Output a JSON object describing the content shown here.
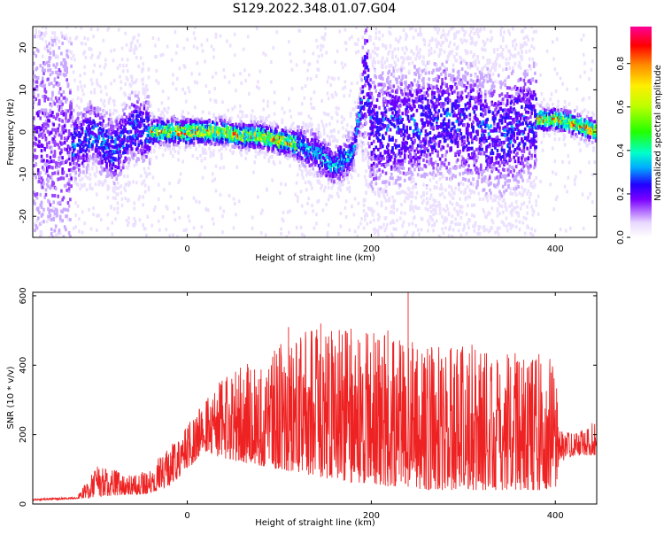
{
  "figure": {
    "title": "S129.2022.348.01.07.G04"
  },
  "chart_data": [
    {
      "type": "heatmap",
      "xlabel": "Height of straight line (km)",
      "ylabel": "Frequency (Hz)",
      "xlim": [
        -168,
        445
      ],
      "ylim": [
        -25,
        25
      ],
      "x_ticks": [
        0,
        200,
        400
      ],
      "y_ticks": [
        -20,
        -10,
        0,
        10,
        20
      ],
      "colorbar": {
        "label": "Normalized spectral amplitude",
        "range": [
          0,
          0.97
        ],
        "ticks": [
          0.0,
          0.2,
          0.4,
          0.6,
          0.8
        ]
      },
      "ridge": {
        "description_free": true,
        "x": [
          -168,
          -120,
          -100,
          -80,
          -60,
          -40,
          -20,
          0,
          20,
          40,
          60,
          80,
          100,
          120,
          140,
          160,
          180,
          195,
          200,
          240,
          280,
          300,
          340,
          380,
          400,
          420,
          445
        ],
        "y": [
          0,
          -3,
          0,
          -5,
          1,
          0,
          0,
          0,
          0,
          0,
          -1,
          -1,
          -2,
          -3,
          -5,
          -8,
          -5,
          14,
          0,
          1,
          3,
          2,
          -1,
          3,
          3,
          2,
          0
        ]
      }
    },
    {
      "type": "line",
      "xlabel": "Height of straight line (km)",
      "ylabel": "SNR (10 * v/v)",
      "xlim": [
        -168,
        445
      ],
      "ylim": [
        0,
        610
      ],
      "x_ticks": [
        0,
        200,
        400
      ],
      "y_ticks": [
        0,
        200,
        400,
        600
      ],
      "color": "#ee2222",
      "envelope": {
        "x": [
          -168,
          -120,
          -100,
          -80,
          -60,
          -40,
          -20,
          0,
          20,
          40,
          60,
          80,
          100,
          120,
          140,
          160,
          180,
          200,
          220,
          240,
          260,
          280,
          300,
          320,
          340,
          360,
          380,
          395,
          400,
          405,
          420,
          445
        ],
        "low": [
          10,
          15,
          20,
          25,
          25,
          30,
          50,
          100,
          150,
          130,
          120,
          110,
          100,
          90,
          80,
          70,
          60,
          60,
          50,
          50,
          40,
          40,
          40,
          40,
          40,
          40,
          40,
          40,
          40,
          120,
          140,
          140
        ],
        "high": [
          15,
          20,
          110,
          100,
          80,
          110,
          170,
          230,
          300,
          370,
          400,
          420,
          460,
          500,
          510,
          500,
          510,
          520,
          500,
          480,
          470,
          460,
          460,
          460,
          440,
          440,
          440,
          420,
          410,
          220,
          210,
          240
        ],
        "spikes": [
          {
            "x": 240,
            "y": 610
          },
          {
            "x": 145,
            "y": 520
          },
          {
            "x": 110,
            "y": 510
          },
          {
            "x": 178,
            "y": 505
          },
          {
            "x": 218,
            "y": 500
          }
        ]
      }
    }
  ]
}
